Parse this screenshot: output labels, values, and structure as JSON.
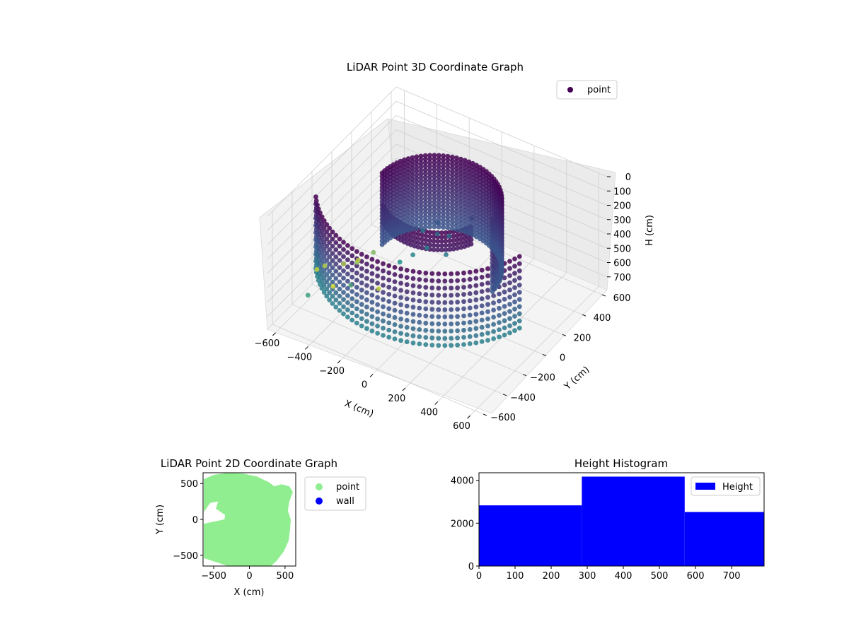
{
  "colors": {
    "viridis_low": "#440154",
    "viridis_mid": "#3b528b",
    "viridis_teal": "#21918c",
    "viridis_high": "#fde725",
    "point_2d": "#90ee90",
    "wall_2d": "#0000ff",
    "histogram_bar": "#0000ff",
    "pane": "#f2f2f2",
    "grid": "#cfcfcf"
  },
  "chart_data": [
    {
      "type": "scatter",
      "projection": "3d",
      "title": "LiDAR Point 3D Coordinate Graph",
      "xlabel": "X (cm)",
      "ylabel": "Y (cm)",
      "zlabel": "H (cm)",
      "xticks": [
        "−600",
        "−400",
        "−200",
        "0",
        "200",
        "400",
        "600"
      ],
      "yticks": [
        "−600",
        "−400",
        "−200",
        "0",
        "200",
        "400",
        "600"
      ],
      "zticks": [
        "0",
        "100",
        "200",
        "300",
        "400",
        "500",
        "600",
        "700"
      ],
      "xlim": [
        -650,
        650
      ],
      "ylim": [
        -650,
        650
      ],
      "zlim": [
        0,
        790
      ],
      "z_inverted": true,
      "colormap": "viridis",
      "grid": true,
      "legend": {
        "position": "top-right",
        "entries": [
          {
            "label": "point"
          }
        ]
      },
      "structure": {
        "outer_arc": {
          "radius_cm": 640,
          "depth_cm": 500,
          "angle_start_deg": 215,
          "angle_end_deg": 345
        },
        "inner_cylinder": {
          "radius_cm": 340,
          "depth_cm": 500,
          "angle_start_deg": 0,
          "angle_end_deg": 180
        },
        "inner_partial_wall": {
          "radius_cm": 300,
          "depth_cm": 120,
          "angle_start_deg": 230,
          "angle_end_deg": 340
        }
      },
      "scattered_points": [
        {
          "x": -650,
          "y": -150,
          "h": 720
        },
        {
          "x": -620,
          "y": -120,
          "h": 700
        },
        {
          "x": -540,
          "y": -60,
          "h": 690
        },
        {
          "x": -500,
          "y": 20,
          "h": 700
        },
        {
          "x": -470,
          "y": -40,
          "h": 660
        },
        {
          "x": -430,
          "y": 60,
          "h": 640
        },
        {
          "x": -520,
          "y": -200,
          "h": 740
        },
        {
          "x": -300,
          "y": -100,
          "h": 720
        },
        {
          "x": -350,
          "y": -300,
          "h": 580
        },
        {
          "x": -480,
          "y": -520,
          "h": 560
        },
        {
          "x": -180,
          "y": 150,
          "h": 430
        },
        {
          "x": -120,
          "y": 200,
          "h": 380
        },
        {
          "x": -60,
          "y": 100,
          "h": 360
        },
        {
          "x": -200,
          "y": -50,
          "h": 520
        },
        {
          "x": -150,
          "y": 0,
          "h": 480
        },
        {
          "x": 0,
          "y": 120,
          "h": 360
        },
        {
          "x": 60,
          "y": 250,
          "h": 300
        },
        {
          "x": -100,
          "y": 60,
          "h": 450
        },
        {
          "x": 30,
          "y": 40,
          "h": 420
        }
      ]
    },
    {
      "type": "scatter",
      "title": "LiDAR Point 2D Coordinate Graph",
      "xlabel": "X (cm)",
      "ylabel": "Y (cm)",
      "xticks": [
        "−500",
        "0",
        "500"
      ],
      "yticks": [
        "500",
        "0",
        "−500"
      ],
      "xlim": [
        -650,
        650
      ],
      "ylim": [
        -650,
        650
      ],
      "legend": {
        "position": "outside-right",
        "entries": [
          {
            "label": "point"
          },
          {
            "label": "wall"
          }
        ]
      },
      "point_region_outline": [
        [
          -640,
          560
        ],
        [
          -500,
          620
        ],
        [
          -300,
          650
        ],
        [
          -100,
          640
        ],
        [
          100,
          600
        ],
        [
          270,
          520
        ],
        [
          350,
          460
        ],
        [
          450,
          490
        ],
        [
          560,
          460
        ],
        [
          610,
          380
        ],
        [
          560,
          250
        ],
        [
          540,
          120
        ],
        [
          580,
          0
        ],
        [
          570,
          -150
        ],
        [
          550,
          -300
        ],
        [
          480,
          -450
        ],
        [
          380,
          -580
        ],
        [
          300,
          -650
        ],
        [
          -300,
          -650
        ],
        [
          -640,
          -540
        ],
        [
          -640,
          -60
        ],
        [
          -350,
          0
        ],
        [
          -340,
          60
        ],
        [
          -470,
          150
        ],
        [
          -440,
          250
        ],
        [
          -550,
          230
        ],
        [
          -640,
          100
        ]
      ]
    },
    {
      "type": "bar",
      "title": "Height Histogram",
      "xticks": [
        "0",
        "100",
        "200",
        "300",
        "400",
        "500",
        "600",
        "700"
      ],
      "yticks": [
        "0",
        "2000",
        "4000"
      ],
      "xlim": [
        0,
        790
      ],
      "ylim": [
        0,
        4350
      ],
      "bins": [
        {
          "start": 0,
          "end": 285,
          "count": 2830
        },
        {
          "start": 285,
          "end": 570,
          "count": 4170
        },
        {
          "start": 570,
          "end": 790,
          "count": 2520
        }
      ],
      "legend": {
        "position": "top-right",
        "entries": [
          {
            "label": "Height"
          }
        ]
      }
    }
  ]
}
